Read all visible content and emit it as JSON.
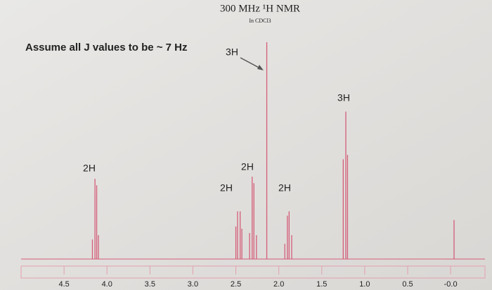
{
  "chart_data": {
    "type": "spectrum",
    "title": "300 MHz ¹H NMR",
    "subtitle": "In CDCl3",
    "note": "Assume all J values to be ~ 7 Hz",
    "annotations": [
      "2H",
      "3H",
      "2H",
      "2H",
      "2H",
      "3H"
    ],
    "color": "#d45d78",
    "x": [
      4.17,
      4.14,
      4.12,
      4.1,
      2.5,
      2.48,
      2.45,
      2.43,
      2.34,
      2.31,
      2.29,
      2.26,
      2.14,
      1.93,
      1.9,
      1.88,
      1.85,
      1.25,
      1.22,
      1.2,
      -0.04
    ],
    "values": [
      9,
      37,
      34,
      11,
      15,
      22,
      22,
      14,
      12,
      38,
      35,
      11,
      100,
      7,
      20,
      22,
      11,
      46,
      68,
      48,
      18
    ],
    "xlim": [
      5.0,
      -0.4
    ],
    "ylim": [
      0,
      100
    ],
    "xticks": [
      4.5,
      {
        "value": 4,
        "label": "4.0"
      },
      3.5,
      {
        "value": 3,
        "label": "3.0"
      },
      2.5,
      {
        "value": 2,
        "label": "2.0"
      },
      1.5,
      {
        "value": 1,
        "label": "1.0"
      },
      0.5,
      {
        "value": 0,
        "label": "-0.0"
      }
    ]
  }
}
